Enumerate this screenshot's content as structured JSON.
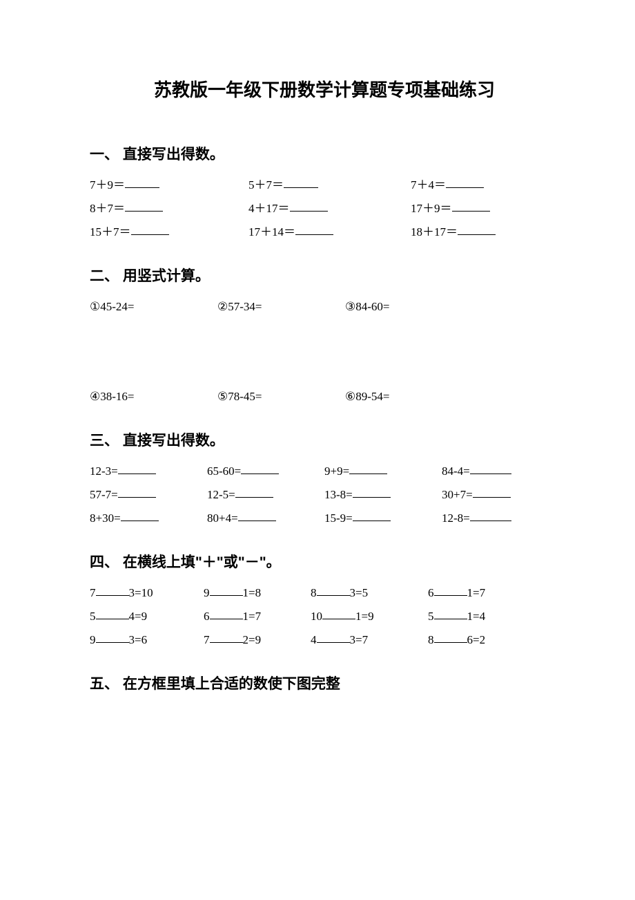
{
  "title": "苏教版一年级下册数学计算题专项基础练习",
  "sections": {
    "s1": {
      "heading": "一、 直接写出得数。",
      "rows": [
        [
          "7＋9＝",
          "5＋7＝",
          "7＋4＝"
        ],
        [
          "8＋7＝",
          "4＋17＝",
          "17＋9＝"
        ],
        [
          "15＋7＝",
          "17＋14＝",
          "18＋17＝"
        ]
      ]
    },
    "s2": {
      "heading": "二、 用竖式计算。",
      "rows": [
        [
          "①45-24=",
          "②57-34=",
          "③84-60="
        ],
        [
          "④38-16=",
          "⑤78-45=",
          "⑥89-54="
        ]
      ]
    },
    "s3": {
      "heading": "三、 直接写出得数。",
      "rows": [
        [
          "12-3=",
          "65-60=",
          "9+9=",
          "84-4="
        ],
        [
          "57-7=",
          "12-5=",
          "13-8=",
          "30+7="
        ],
        [
          "8+30=",
          "80+4=",
          "15-9=",
          "12-8="
        ]
      ]
    },
    "s4": {
      "heading": "四、 在横线上填\"＋\"或\"－\"。",
      "rows": [
        [
          [
            "7",
            "3=10"
          ],
          [
            "9",
            "1=8"
          ],
          [
            "8",
            "3=5"
          ],
          [
            "6",
            "1=7"
          ]
        ],
        [
          [
            "5",
            "4=9"
          ],
          [
            "6",
            "1=7"
          ],
          [
            "10",
            "1=9"
          ],
          [
            "5",
            "1=4"
          ]
        ],
        [
          [
            "9",
            "3=6"
          ],
          [
            "7",
            "2=9"
          ],
          [
            "4",
            "3=7"
          ],
          [
            "8",
            "6=2"
          ]
        ]
      ]
    },
    "s5": {
      "heading": "五、 在方框里填上合适的数使下图完整"
    }
  }
}
